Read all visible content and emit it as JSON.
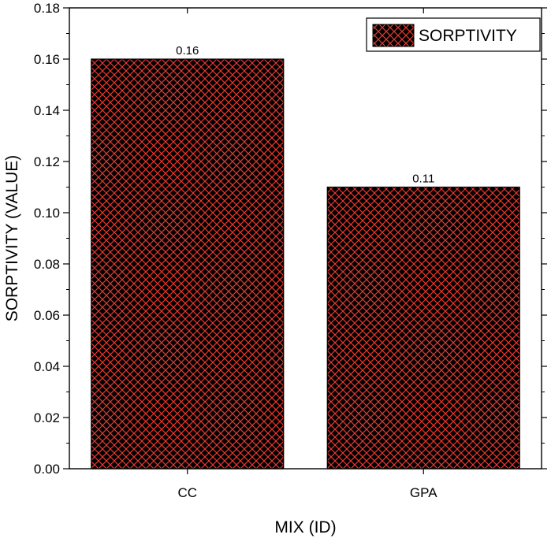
{
  "chart_data": {
    "type": "bar",
    "categories": [
      "CC",
      "GPA"
    ],
    "series": [
      {
        "name": "SORPTIVITY",
        "values": [
          0.16,
          0.11
        ],
        "color": "#000000",
        "hatch_color": "#e8392f"
      }
    ],
    "data_labels": [
      "0.16",
      "0.11"
    ],
    "xlabel": "MIX (ID)",
    "ylabel": "SORPTIVITY (VALUE)",
    "ylim": [
      0,
      0.18
    ],
    "yticks": [
      0.0,
      0.02,
      0.04,
      0.06,
      0.08,
      0.1,
      0.12,
      0.14,
      0.16,
      0.18
    ],
    "ytick_labels": [
      "0.00",
      "0.02",
      "0.04",
      "0.06",
      "0.08",
      "0.10",
      "0.12",
      "0.14",
      "0.16",
      "0.18"
    ],
    "grid": false,
    "legend": "top-right"
  }
}
